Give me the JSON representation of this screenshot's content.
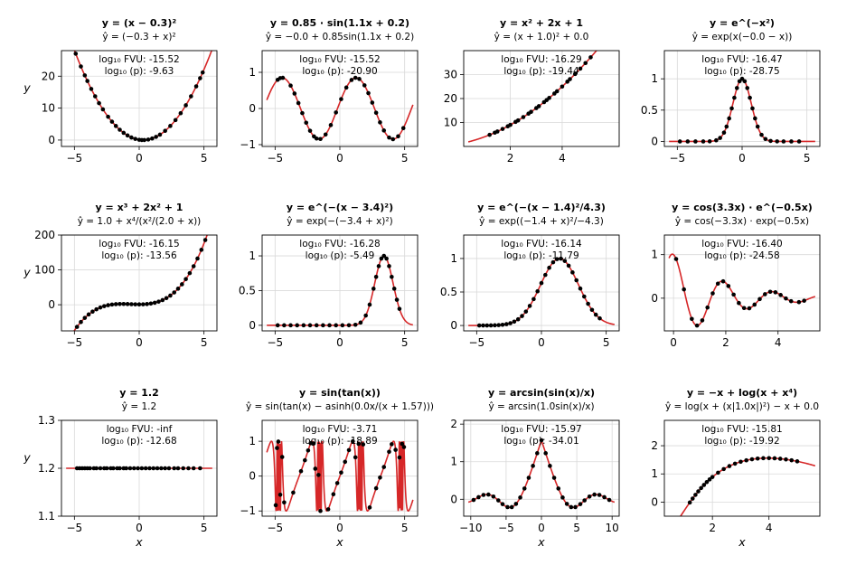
{
  "figure": {
    "xlabel": "x",
    "ylabel": "y"
  },
  "chart_data": [
    {
      "type": "scatter",
      "title": "y = (x − 0.3)²",
      "subtitle": "ŷ = (−0.3 + x)²",
      "fvu": "log₁₀ FVU: -15.52",
      "p": "log₁₀ (p): -9.63",
      "fn": "poly",
      "c": [
        0.09,
        -0.6,
        1
      ],
      "xlim": [
        -6,
        6
      ],
      "ylim": [
        -2,
        28
      ],
      "xticks": [
        -5,
        0,
        5
      ],
      "yticks": [
        0,
        10,
        20
      ],
      "x": [
        -4.9,
        -4.5,
        -4.2,
        -4.0,
        -3.7,
        -3.4,
        -3.1,
        -2.8,
        -2.4,
        -2.1,
        -1.8,
        -1.5,
        -1.2,
        -0.9,
        -0.6,
        -0.3,
        0.0,
        0.2,
        0.4,
        0.7,
        1.0,
        1.3,
        1.6,
        2.0,
        2.4,
        2.8,
        3.2,
        3.6,
        4.0,
        4.4,
        4.7,
        4.9
      ]
    },
    {
      "type": "scatter",
      "title": "y = 0.85 · sin(1.1x + 0.2)",
      "subtitle": "ŷ = −0.0 + 0.85sin(1.1x + 0.2)",
      "fvu": "log₁₀ FVU: -15.52",
      "p": "log₁₀ (p): -20.90",
      "fn": "sin",
      "c": [
        0.85,
        1.1,
        0.2
      ],
      "xlim": [
        -6,
        6
      ],
      "ylim": [
        -1.05,
        1.6
      ],
      "xticks": [
        -5,
        0,
        5
      ],
      "yticks": [
        -1,
        0,
        1
      ],
      "x": [
        -4.8,
        -4.6,
        -4.4,
        -3.8,
        -3.5,
        -3.2,
        -2.9,
        -2.6,
        -2.3,
        -2.0,
        -1.8,
        -1.5,
        -1.1,
        -0.7,
        -0.3,
        0.1,
        0.5,
        0.9,
        1.2,
        1.5,
        1.9,
        2.2,
        2.5,
        2.8,
        3.1,
        3.4,
        3.8,
        4.1,
        4.5,
        4.9
      ]
    },
    {
      "type": "scatter",
      "title": "y = x² + 2x + 1",
      "subtitle": "ŷ = (x + 1.0)² + 0.0",
      "fvu": "log₁₀ FVU: -16.29",
      "p": "log₁₀ (p): -19.44",
      "fn": "poly",
      "c": [
        1,
        2,
        1
      ],
      "xlim": [
        0.2,
        6.2
      ],
      "ylim": [
        0,
        40
      ],
      "xticks": [
        2,
        4
      ],
      "yticks": [
        10,
        20,
        30
      ],
      "x": [
        1.2,
        1.4,
        1.5,
        1.7,
        1.9,
        2.0,
        2.2,
        2.3,
        2.5,
        2.7,
        2.8,
        3.0,
        3.1,
        3.3,
        3.4,
        3.5,
        3.7,
        3.8,
        4.0,
        4.2,
        4.3,
        4.5,
        4.7,
        4.9,
        5.1
      ]
    },
    {
      "type": "scatter",
      "title": "y = e^(−x²)",
      "subtitle": "ŷ = exp(x(−0.0 − x))",
      "fvu": "log₁₀ FVU: -16.47",
      "p": "log₁₀ (p): -28.75",
      "fn": "gauss",
      "c": [
        0,
        1
      ],
      "xlim": [
        -6,
        6
      ],
      "ylim": [
        -0.08,
        1.45
      ],
      "xticks": [
        -5,
        0,
        5
      ],
      "yticks": [
        0.0,
        0.5,
        1.0
      ],
      "x": [
        -4.8,
        -4.2,
        -3.6,
        -3.0,
        -2.5,
        -2.0,
        -1.7,
        -1.4,
        -1.2,
        -1.0,
        -0.8,
        -0.6,
        -0.4,
        -0.2,
        0.0,
        0.2,
        0.4,
        0.6,
        0.8,
        1.0,
        1.2,
        1.5,
        1.8,
        2.2,
        2.7,
        3.2,
        3.8,
        4.4
      ]
    },
    {
      "type": "scatter",
      "title": "y = x³ + 2x² + 1",
      "subtitle": "ŷ = 1.0 + x⁴/(x²/(2.0 + x))",
      "fvu": "log₁₀ FVU: -16.15",
      "p": "log₁₀ (p): -13.56",
      "fn": "poly",
      "c": [
        1,
        0,
        2,
        1
      ],
      "xlim": [
        -6,
        6
      ],
      "ylim": [
        -75,
        200
      ],
      "xticks": [
        -5,
        0,
        5
      ],
      "yticks": [
        0,
        100,
        200
      ],
      "x": [
        -4.8,
        -4.5,
        -4.2,
        -3.9,
        -3.6,
        -3.3,
        -3.0,
        -2.7,
        -2.4,
        -2.1,
        -1.8,
        -1.5,
        -1.2,
        -0.9,
        -0.6,
        -0.3,
        0.0,
        0.3,
        0.6,
        0.9,
        1.2,
        1.5,
        1.8,
        2.1,
        2.4,
        2.7,
        3.0,
        3.3,
        3.6,
        3.9,
        4.2,
        4.5,
        4.8,
        5.1
      ]
    },
    {
      "type": "scatter",
      "title": "y = e^(−(x − 3.4)²)",
      "subtitle": "ŷ = exp(−(−3.4 + x)²)",
      "fvu": "log₁₀ FVU: -16.28",
      "p": "log₁₀ (p): -5.49",
      "fn": "gauss",
      "c": [
        3.4,
        1
      ],
      "xlim": [
        -6,
        6
      ],
      "ylim": [
        -0.08,
        1.3
      ],
      "xticks": [
        -5,
        0,
        5
      ],
      "yticks": [
        0.0,
        0.5,
        1.0
      ],
      "x": [
        -4.8,
        -4.3,
        -3.8,
        -3.3,
        -2.8,
        -2.3,
        -1.8,
        -1.3,
        -0.8,
        -0.3,
        0.2,
        0.7,
        1.2,
        1.6,
        2.0,
        2.3,
        2.6,
        2.8,
        3.0,
        3.2,
        3.4,
        3.6,
        3.8,
        4.0,
        4.2,
        4.4,
        4.6
      ]
    },
    {
      "type": "scatter",
      "title": "y = e^(−(x − 1.4)²/4.3)",
      "subtitle": "ŷ = exp((−1.4 + x)²/−4.3)",
      "fvu": "log₁₀ FVU: -16.14",
      "p": "log₁₀ (p): -11.79",
      "fn": "gauss",
      "c": [
        1.4,
        4.3
      ],
      "xlim": [
        -6,
        6
      ],
      "ylim": [
        -0.08,
        1.35
      ],
      "xticks": [
        -5,
        0,
        5
      ],
      "yticks": [
        0.0,
        0.5,
        1.0
      ],
      "x": [
        -4.8,
        -4.5,
        -4.2,
        -3.9,
        -3.6,
        -3.3,
        -3.0,
        -2.7,
        -2.4,
        -2.1,
        -1.8,
        -1.5,
        -1.2,
        -0.9,
        -0.6,
        -0.3,
        0.0,
        0.3,
        0.6,
        0.9,
        1.2,
        1.5,
        1.8,
        2.1,
        2.4,
        2.7,
        3.0,
        3.3,
        3.6,
        3.9,
        4.2,
        4.5
      ]
    },
    {
      "type": "scatter",
      "title": "y = cos(3.3x) · e^(−0.5x)",
      "subtitle": "ŷ = cos(−3.3x) · exp(−0.5x)",
      "fvu": "log₁₀ FVU: -16.40",
      "p": "log₁₀ (p): -24.58",
      "fn": "dampcos",
      "c": [
        3.3,
        0.5
      ],
      "xlim": [
        -0.35,
        5.6
      ],
      "ylim": [
        -0.75,
        1.45
      ],
      "xticks": [
        0,
        2,
        4
      ],
      "yticks": [
        0,
        1
      ],
      "x": [
        0.1,
        0.4,
        0.7,
        0.9,
        1.1,
        1.3,
        1.5,
        1.7,
        1.9,
        2.1,
        2.3,
        2.5,
        2.7,
        2.9,
        3.1,
        3.3,
        3.5,
        3.7,
        3.9,
        4.1,
        4.3,
        4.5,
        4.8,
        5.0
      ]
    },
    {
      "type": "scatter",
      "title": "y = 1.2",
      "subtitle": "ŷ = 1.2",
      "fvu": "log₁₀ FVU: -inf",
      "p": "log₁₀ (p): -12.68",
      "fn": "poly",
      "c": [
        1.2
      ],
      "xlim": [
        -6,
        6
      ],
      "ylim": [
        1.1,
        1.3
      ],
      "xticks": [
        -5,
        0,
        5
      ],
      "yticks": [
        1.1,
        1.2,
        1.3
      ],
      "x": [
        -4.8,
        -4.6,
        -4.4,
        -4.2,
        -4.0,
        -3.8,
        -3.5,
        -3.3,
        -3.0,
        -2.7,
        -2.5,
        -2.2,
        -2.0,
        -1.7,
        -1.5,
        -1.2,
        -1.0,
        -0.7,
        -0.4,
        -0.1,
        0.2,
        0.5,
        0.8,
        1.1,
        1.4,
        1.7,
        2.0,
        2.3,
        2.7,
        3.0,
        3.4,
        3.8,
        4.2,
        4.7
      ]
    },
    {
      "type": "scatter",
      "title": "y = sin(tan(x))",
      "subtitle": "ŷ = sin(tan(x) − asinh(0.0x/(x + 1.57)))",
      "fvu": "log₁₀ FVU: -3.71",
      "p": "log₁₀ (p): -18.89",
      "fn": "sintan",
      "c": [],
      "xlim": [
        -6,
        6
      ],
      "ylim": [
        -1.15,
        1.6
      ],
      "xticks": [
        -5,
        0,
        5
      ],
      "yticks": [
        -1,
        0,
        1
      ],
      "x": [
        -4.95,
        -4.85,
        -4.75,
        -4.6,
        -4.45,
        -4.3,
        -3.6,
        -3.0,
        -2.7,
        -2.45,
        -2.25,
        -2.05,
        -1.9,
        -1.65,
        -1.5,
        -0.9,
        -0.5,
        -0.2,
        0.1,
        0.4,
        0.7,
        1.0,
        1.2,
        1.45,
        1.8,
        2.3,
        2.8,
        3.1,
        3.4,
        3.8,
        4.0,
        4.3,
        4.6,
        4.8,
        4.95
      ]
    },
    {
      "type": "scatter",
      "title": "y = arcsin(sin(x)/x)",
      "subtitle": "ŷ = arcsin(1.0sin(x)/x)",
      "fvu": "log₁₀ FVU: -15.97",
      "p": "log₁₀ (p): -34.01",
      "fn": "asinc",
      "c": [],
      "xlim": [
        -11,
        11
      ],
      "ylim": [
        -0.45,
        2.1
      ],
      "xticks": [
        -10,
        -5,
        0,
        5,
        10
      ],
      "yticks": [
        0,
        1,
        2
      ],
      "x": [
        -9.6,
        -8.9,
        -8.2,
        -7.5,
        -6.8,
        -6.1,
        -5.5,
        -4.8,
        -4.2,
        -3.6,
        -3.0,
        -2.4,
        -1.8,
        -1.2,
        -0.6,
        0.0,
        0.6,
        1.2,
        1.8,
        2.4,
        3.0,
        3.6,
        4.2,
        4.8,
        5.5,
        6.1,
        6.8,
        7.5,
        8.2,
        8.9,
        9.6
      ]
    },
    {
      "type": "scatter",
      "title": "y = −x + log(x + x⁴)",
      "subtitle": "ŷ = log(x + (x|1.0x|)²) − x + 0.0",
      "fvu": "log₁₀ FVU: -15.81",
      "p": "log₁₀ (p): -19.92",
      "fn": "logx",
      "c": [],
      "xlim": [
        0.3,
        5.8
      ],
      "ylim": [
        -0.5,
        2.9
      ],
      "xticks": [
        2,
        4
      ],
      "yticks": [
        0,
        1,
        2
      ],
      "x": [
        1.2,
        1.3,
        1.4,
        1.5,
        1.6,
        1.7,
        1.8,
        1.9,
        2.0,
        2.2,
        2.4,
        2.6,
        2.8,
        3.0,
        3.2,
        3.4,
        3.6,
        3.8,
        4.0,
        4.2,
        4.4,
        4.6,
        4.8,
        5.0
      ]
    }
  ]
}
